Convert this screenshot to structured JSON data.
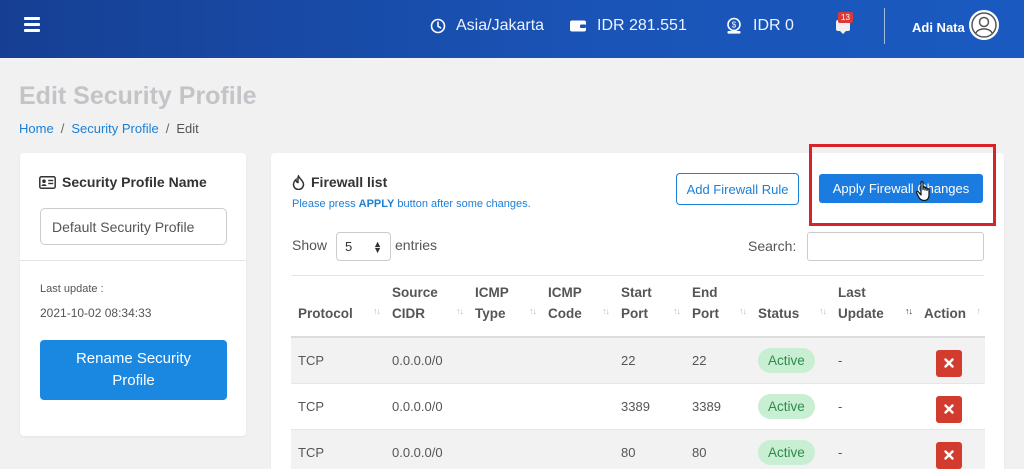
{
  "topbar": {
    "timezone": "Asia/Jakarta",
    "balance": "IDR 281.551",
    "credit": "IDR 0",
    "notification_count": "13",
    "user_name": "Adi Nata"
  },
  "page": {
    "title": "Edit Security Profile",
    "breadcrumb": [
      "Home",
      "Security Profile",
      "Edit"
    ]
  },
  "profile_card": {
    "title": "Security Profile Name",
    "name_value": "Default Security Profile",
    "last_update_label": "Last update :",
    "last_update_value": "2021-10-02 08:34:33",
    "rename_button": "Rename Security Profile"
  },
  "firewall": {
    "title": "Firewall list",
    "hint_prefix": "Please press ",
    "hint_keyword": "APPLY",
    "hint_suffix": " button after some changes.",
    "add_rule_button": "Add Firewall Rule",
    "apply_button": "Apply Firewall Changes",
    "show_label": "Show",
    "entries_value": "5",
    "entries_label": "entries",
    "search_label": "Search:",
    "search_value": "",
    "columns": [
      {
        "l1": "",
        "l2": "Protocol"
      },
      {
        "l1": "Source",
        "l2": "CIDR"
      },
      {
        "l1": "ICMP",
        "l2": "Type"
      },
      {
        "l1": "ICMP",
        "l2": "Code"
      },
      {
        "l1": "Start",
        "l2": "Port"
      },
      {
        "l1": "End",
        "l2": "Port"
      },
      {
        "l1": "",
        "l2": "Status"
      },
      {
        "l1": "Last",
        "l2": "Update"
      },
      {
        "l1": "",
        "l2": "Action"
      }
    ],
    "rows": [
      {
        "protocol": "TCP",
        "cidr": "0.0.0.0/0",
        "icmp_type": "",
        "icmp_code": "",
        "start": "22",
        "end": "22",
        "status": "Active",
        "updated": "-"
      },
      {
        "protocol": "TCP",
        "cidr": "0.0.0.0/0",
        "icmp_type": "",
        "icmp_code": "",
        "start": "3389",
        "end": "3389",
        "status": "Active",
        "updated": "-"
      },
      {
        "protocol": "TCP",
        "cidr": "0.0.0.0/0",
        "icmp_type": "",
        "icmp_code": "",
        "start": "80",
        "end": "80",
        "status": "Active",
        "updated": "-"
      }
    ]
  },
  "colors": {
    "topbar": "#1a53b5",
    "primary": "#1a88e0",
    "highlight_box": "#d8232a",
    "status_bg": "#c9efd3",
    "delete": "#d13c2f"
  }
}
